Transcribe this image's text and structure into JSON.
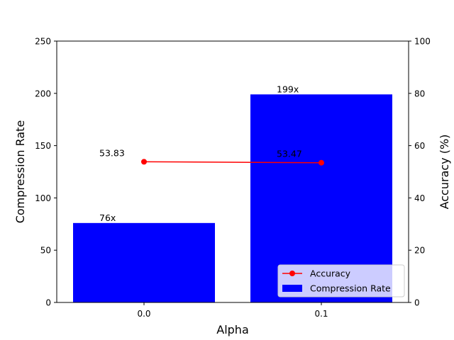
{
  "chart_data": {
    "type": "bar",
    "xlabel": "Alpha",
    "categories": [
      "0.0",
      "0.1"
    ],
    "bar_series": {
      "name": "Compression Rate",
      "values": [
        76,
        199
      ],
      "labels": [
        "76x",
        "199x"
      ],
      "color": "#0000ff",
      "axis": "left"
    },
    "line_series": {
      "name": "Accuracy",
      "values": [
        53.83,
        53.47
      ],
      "labels": [
        "53.83",
        "53.47"
      ],
      "color": "#ff0000",
      "axis": "right",
      "marker": "circle"
    },
    "y_left": {
      "label": "Compression Rate",
      "range": [
        0,
        250
      ],
      "ticks": [
        "0",
        "50",
        "100",
        "150",
        "200",
        "250"
      ]
    },
    "y_right": {
      "label": "Accuracy (%)",
      "range": [
        0,
        100
      ],
      "ticks": [
        "0",
        "20",
        "40",
        "60",
        "80",
        "100"
      ]
    },
    "grid": false,
    "legend_position": "lower-right"
  }
}
